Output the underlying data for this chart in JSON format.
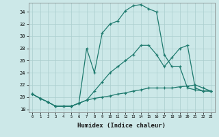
{
  "xlabel": "Humidex (Indice chaleur)",
  "bg_color": "#cce8e8",
  "line_color": "#1e7a6e",
  "grid_color": "#aacece",
  "ylim": [
    17.5,
    35.5
  ],
  "yticks": [
    18,
    20,
    22,
    24,
    26,
    28,
    30,
    32,
    34
  ],
  "xlim": [
    -0.5,
    23.5
  ],
  "xticks": [
    0,
    1,
    2,
    3,
    4,
    5,
    6,
    7,
    8,
    9,
    10,
    11,
    12,
    13,
    14,
    15,
    16,
    17,
    18,
    19,
    20,
    21,
    22,
    23
  ],
  "s1_x": [
    0,
    1,
    2,
    3,
    4,
    5,
    6,
    7,
    8,
    9,
    10,
    11,
    12,
    13,
    14,
    15,
    16,
    17,
    18,
    19,
    20,
    21,
    22,
    23
  ],
  "s1_y": [
    20.5,
    19.8,
    19.2,
    18.5,
    18.5,
    18.5,
    19.0,
    19.5,
    19.8,
    20.0,
    20.2,
    20.5,
    20.7,
    21.0,
    21.2,
    21.5,
    21.5,
    21.5,
    21.5,
    21.7,
    21.8,
    22.0,
    21.5,
    21.0
  ],
  "s2_x": [
    0,
    1,
    2,
    3,
    4,
    5,
    6,
    7,
    8,
    9,
    10,
    11,
    12,
    13,
    14,
    15,
    16,
    17,
    18,
    19,
    20,
    21,
    22,
    23
  ],
  "s2_y": [
    20.5,
    19.8,
    19.2,
    18.5,
    18.5,
    18.5,
    19.0,
    19.5,
    21.0,
    22.5,
    24.0,
    25.0,
    26.0,
    27.0,
    28.5,
    28.5,
    27.0,
    25.0,
    26.5,
    28.0,
    28.5,
    21.5,
    21.0,
    21.0
  ],
  "s3_x": [
    0,
    1,
    2,
    3,
    4,
    5,
    6,
    7,
    8,
    9,
    10,
    11,
    12,
    13,
    14,
    15,
    16,
    17,
    18,
    19,
    20,
    21,
    22,
    23
  ],
  "s3_y": [
    20.5,
    19.8,
    19.2,
    18.5,
    18.5,
    18.5,
    19.0,
    28.0,
    24.0,
    30.5,
    32.0,
    32.5,
    34.2,
    35.0,
    35.2,
    34.5,
    34.0,
    27.0,
    25.0,
    25.0,
    21.5,
    21.2,
    21.0,
    21.0
  ]
}
